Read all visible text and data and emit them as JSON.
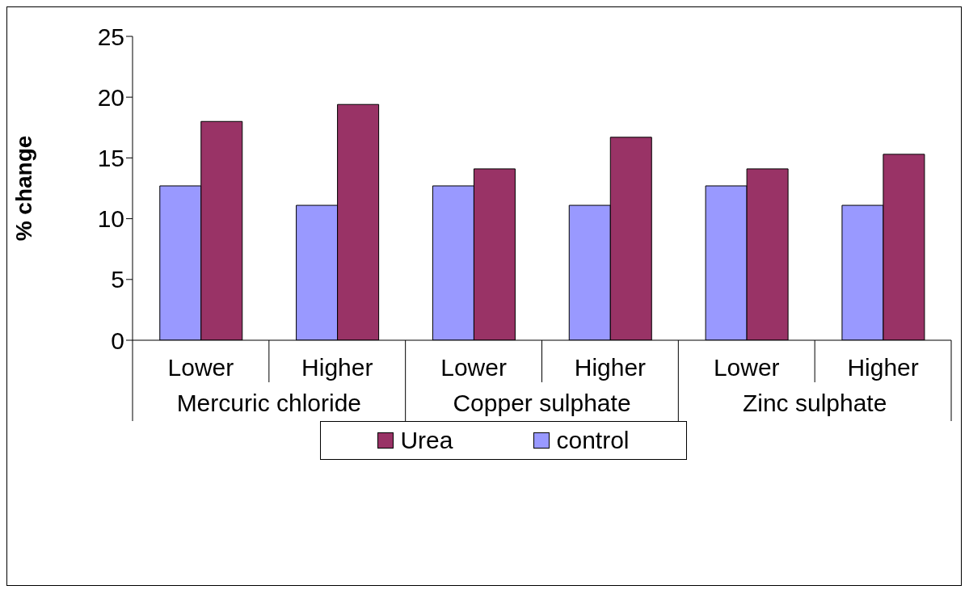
{
  "chart_data": {
    "type": "bar",
    "ylabel": "% change",
    "categories": [
      "Lower",
      "Higher",
      "Lower",
      "Higher",
      "Lower",
      "Higher"
    ],
    "series": [
      {
        "name": "control",
        "color": "#9999ff",
        "values": [
          12.7,
          11.1,
          12.7,
          11.1,
          12.7,
          11.1
        ]
      },
      {
        "name": "Urea",
        "color": "#993366",
        "values": [
          18.0,
          19.4,
          14.1,
          16.7,
          14.1,
          15.3
        ]
      }
    ],
    "annotations": [
      "Mercuric chloride",
      "Copper sulphate",
      "Zinc sulphate"
    ],
    "ylim": [
      0,
      25
    ],
    "yticks": [
      0,
      5,
      10,
      15,
      20,
      25
    ],
    "grid": false,
    "legend": "bottom"
  }
}
